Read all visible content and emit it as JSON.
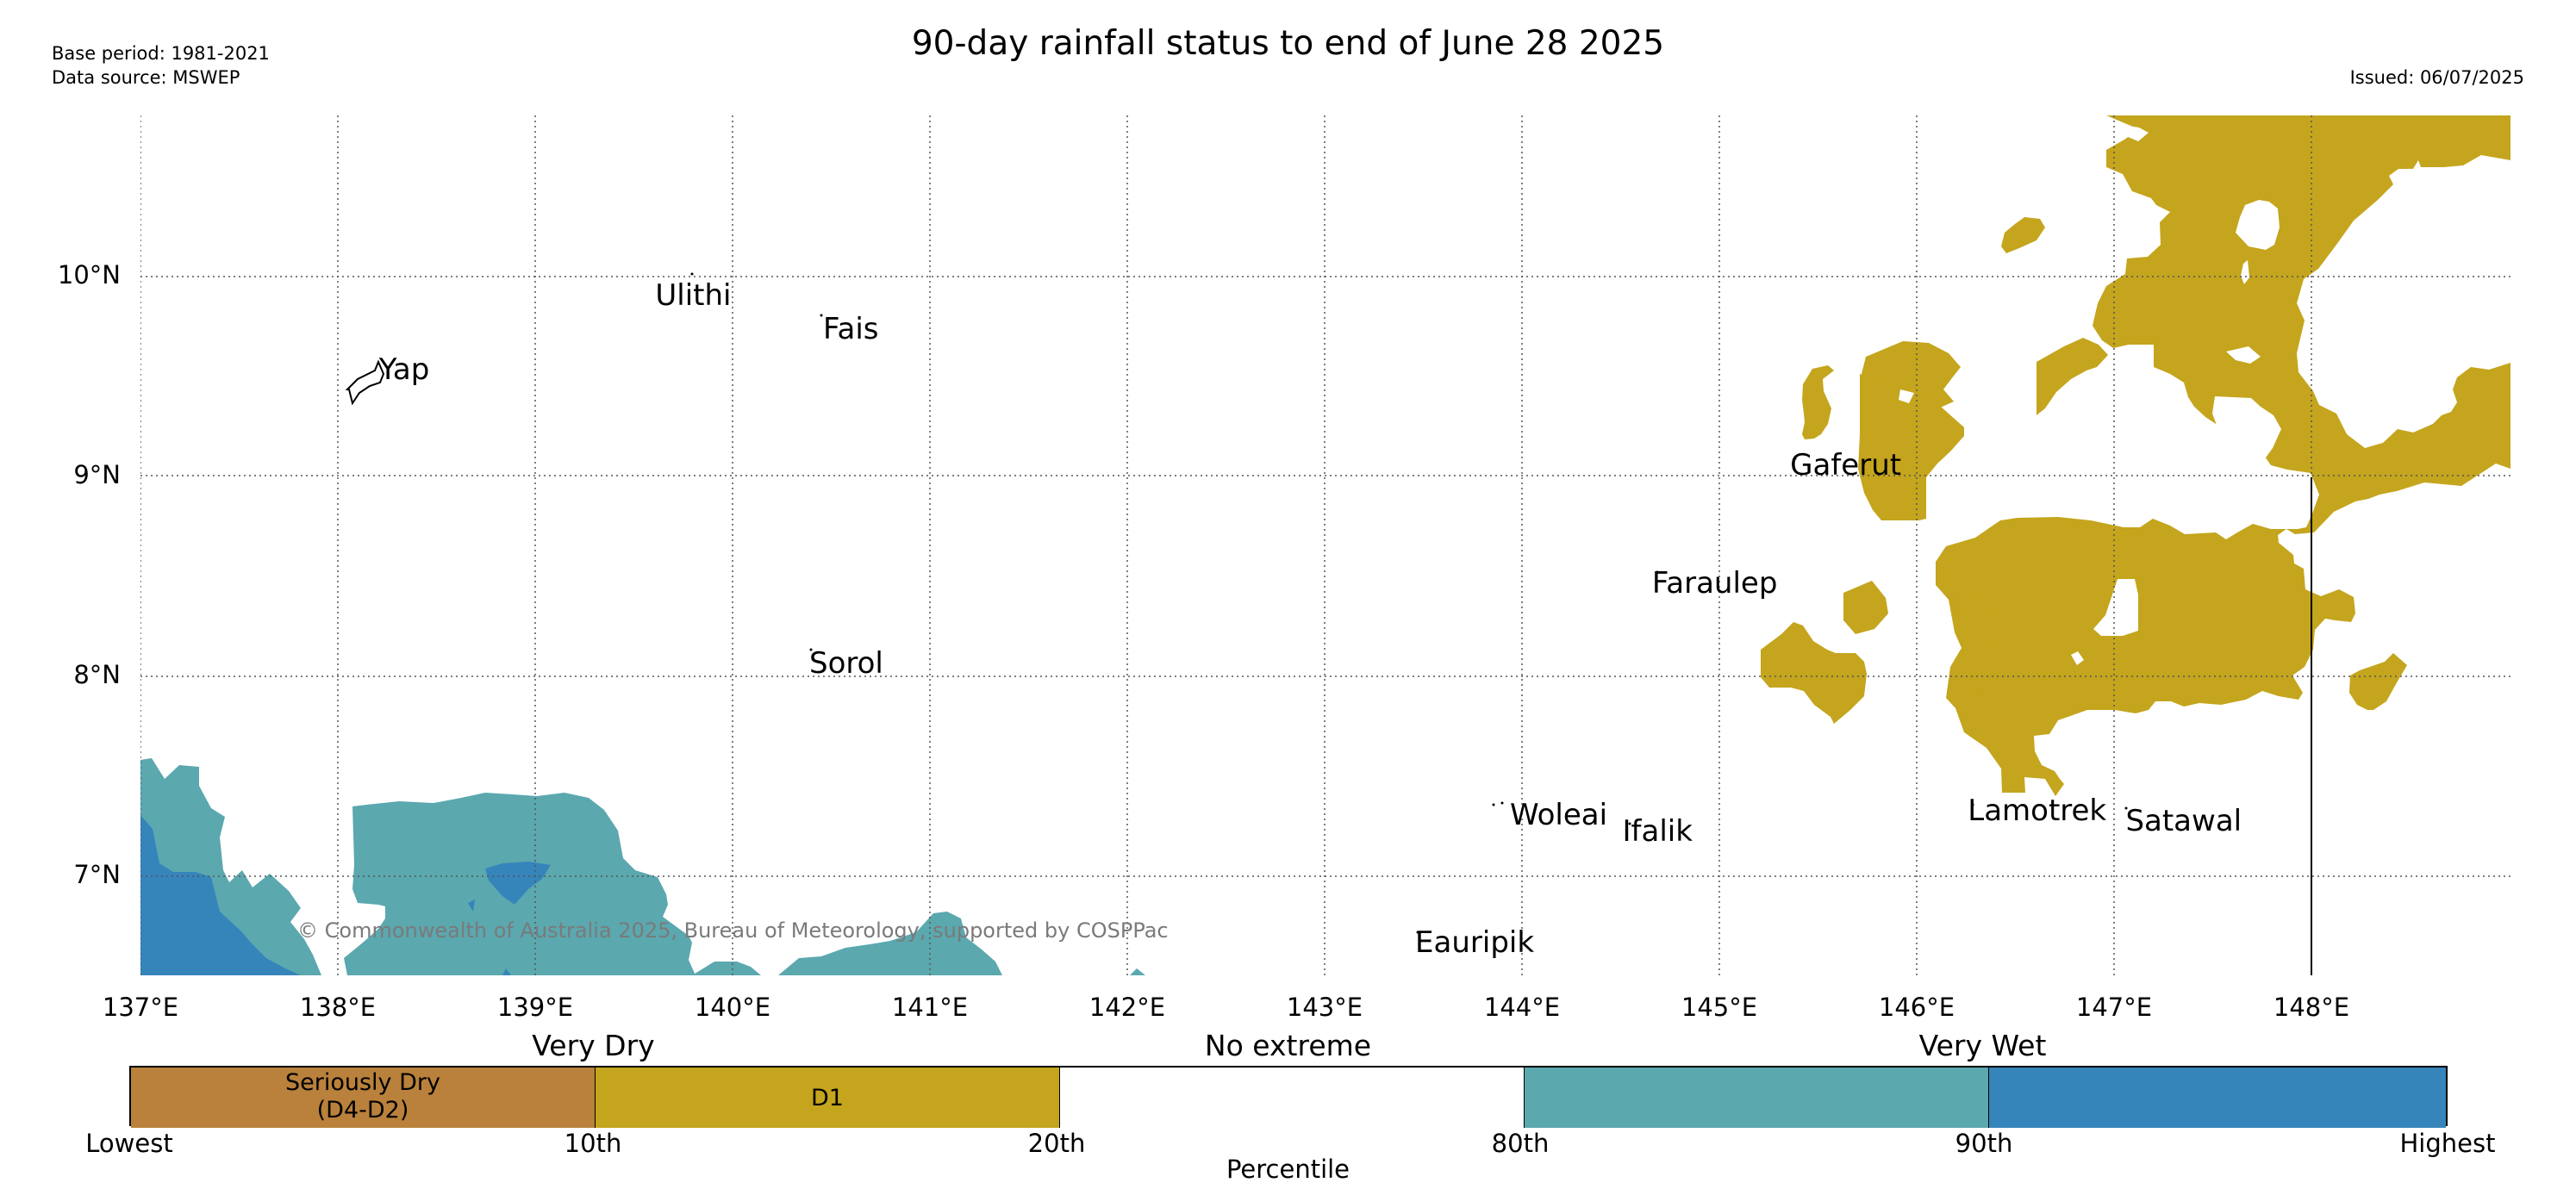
{
  "title": "90-day rainfall status to end of June 28 2025",
  "meta": {
    "base_period": "Base period: 1981-2021",
    "data_source": "Data source: MSWEP",
    "issued": "Issued: 06/07/2025"
  },
  "copyright": "© Commonwealth of Australia 2025, Bureau of Meteorology, supported by COSPPac",
  "map": {
    "lon_ticks": [
      "137°E",
      "138°E",
      "139°E",
      "140°E",
      "141°E",
      "142°E",
      "143°E",
      "144°E",
      "145°E",
      "146°E",
      "147°E",
      "148°E"
    ],
    "lat_ticks": [
      "10°N",
      "9°N",
      "8°N",
      "7°N"
    ],
    "extent": {
      "lon_min": 137.0,
      "lon_max": 149.0,
      "lat_min": 6.5,
      "lat_max": 10.8
    },
    "places": [
      {
        "name": "Yap",
        "lon": 138.2,
        "lat": 9.53
      },
      {
        "name": "Ulithi",
        "lon": 139.6,
        "lat": 9.9
      },
      {
        "name": "Fais",
        "lon": 140.45,
        "lat": 9.73
      },
      {
        "name": "Sorol",
        "lon": 140.38,
        "lat": 8.06
      },
      {
        "name": "Faraulep",
        "lon": 144.65,
        "lat": 8.46
      },
      {
        "name": "Gaferut",
        "lon": 145.35,
        "lat": 9.05
      },
      {
        "name": "Woleai",
        "lon": 143.93,
        "lat": 7.3
      },
      {
        "name": "Ifalik",
        "lon": 144.5,
        "lat": 7.22
      },
      {
        "name": "Lamotrek",
        "lon": 146.25,
        "lat": 7.32
      },
      {
        "name": "Satawal",
        "lon": 147.05,
        "lat": 7.27
      },
      {
        "name": "Eauripik",
        "lon": 143.45,
        "lat": 6.66
      }
    ]
  },
  "legend": {
    "category_labels": [
      "Very Dry",
      "No extreme",
      "Very Wet"
    ],
    "segments": [
      {
        "label": "Seriously Dry\n(D4-D2)",
        "color": "#b9813b"
      },
      {
        "label": "D1",
        "color": "#c4a51d"
      },
      {
        "label": "",
        "color": "#ffffff"
      },
      {
        "label": "",
        "color": "#5ba8af"
      },
      {
        "label": "",
        "color": "#3585bb"
      }
    ],
    "ticks": [
      "Lowest",
      "10th",
      "20th",
      "80th",
      "90th",
      "Highest"
    ],
    "xlabel": "Percentile"
  },
  "colors": {
    "d1": "#c4a51d",
    "wet_80_90": "#5ba8af",
    "wet_90_plus": "#3585bb",
    "grid": "#555555"
  }
}
